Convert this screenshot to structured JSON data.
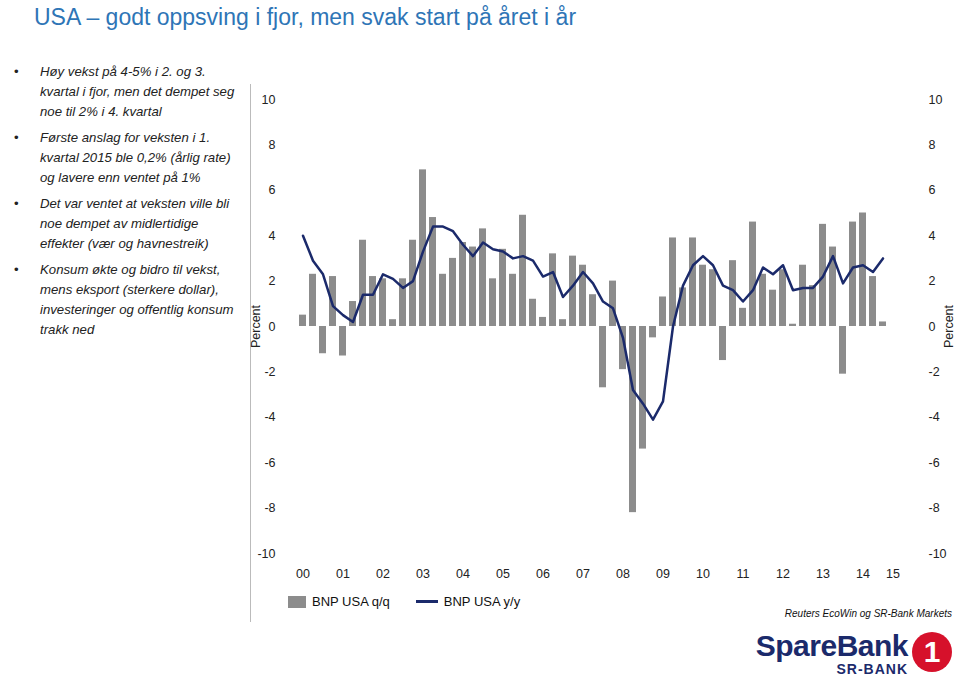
{
  "chart_data": {
    "type": "bar",
    "title": "USA – godt oppsving i fjor, men svak start på året i år",
    "bullets": [
      "Høy vekst på 4-5% i 2. og 3. kvartal i fjor, men det dempet seg noe til 2% i 4. kvartal",
      "Første anslag for veksten i 1. kvartal 2015 ble 0,2% (årlig rate) og lavere enn ventet på 1%",
      "Det var ventet at veksten ville bli noe dempet av midlertidige effekter (vær og havnestreik)",
      "Konsum økte og bidro til vekst, mens eksport (sterkere dollar), investeringer og offentlig konsum trakk ned"
    ],
    "y_label": "Percent",
    "source": "Reuters EcoWin og SR-Bank Markets",
    "logo": {
      "name": "SpareBank",
      "sub": "SR-BANK",
      "number": "1"
    },
    "categories": [
      "00",
      null,
      null,
      null,
      "01",
      null,
      null,
      null,
      "02",
      null,
      null,
      null,
      "03",
      null,
      null,
      null,
      "04",
      null,
      null,
      null,
      "05",
      null,
      null,
      null,
      "06",
      null,
      null,
      null,
      "07",
      null,
      null,
      null,
      "08",
      null,
      null,
      null,
      "09",
      null,
      null,
      null,
      "10",
      null,
      null,
      null,
      "11",
      null,
      null,
      null,
      "12",
      null,
      null,
      null,
      "13",
      null,
      null,
      null,
      "14",
      null,
      null,
      "15"
    ],
    "series": [
      {
        "name": "BNP USA q/q",
        "type": "bar",
        "color": "#8c8c8c",
        "values": [
          0.5,
          2.3,
          -1.2,
          2.2,
          -1.3,
          1.1,
          3.8,
          2.2,
          2.1,
          0.3,
          2.1,
          3.8,
          6.9,
          4.8,
          2.3,
          3.0,
          3.7,
          3.5,
          4.3,
          2.1,
          3.4,
          2.3,
          4.9,
          1.2,
          0.4,
          3.2,
          0.3,
          3.1,
          2.7,
          1.4,
          -2.7,
          2.0,
          -1.9,
          -8.2,
          -5.4,
          -0.5,
          1.3,
          3.9,
          1.7,
          3.9,
          2.7,
          2.5,
          -1.5,
          2.9,
          0.8,
          4.6,
          2.3,
          1.6,
          2.5,
          0.1,
          2.7,
          1.8,
          4.5,
          3.5,
          -2.1,
          4.6,
          5.0,
          2.2,
          0.2,
          null
        ]
      },
      {
        "name": "BNP USA y/y",
        "type": "line",
        "color": "#1b2a6b",
        "values": [
          4.0,
          2.9,
          2.3,
          0.9,
          0.5,
          0.2,
          1.4,
          1.4,
          2.3,
          2.1,
          1.7,
          2.0,
          3.3,
          4.4,
          4.4,
          4.2,
          3.6,
          3.1,
          3.7,
          3.4,
          3.3,
          3.0,
          3.1,
          2.9,
          2.2,
          2.4,
          1.3,
          1.8,
          2.4,
          1.9,
          1.1,
          0.8,
          -0.5,
          -2.8,
          -3.4,
          -4.1,
          -3.3,
          0.0,
          1.8,
          2.7,
          3.1,
          2.7,
          1.8,
          1.6,
          1.1,
          1.6,
          2.6,
          2.3,
          2.7,
          1.6,
          1.7,
          1.7,
          2.2,
          3.1,
          1.9,
          2.6,
          2.7,
          2.4,
          3.0,
          null
        ]
      }
    ],
    "ylim": [
      -10,
      10
    ],
    "yticks": [
      -10,
      -8,
      -6,
      -4,
      -2,
      0,
      2,
      4,
      6,
      8,
      10
    ],
    "grid": false,
    "legend": "bottom"
  }
}
